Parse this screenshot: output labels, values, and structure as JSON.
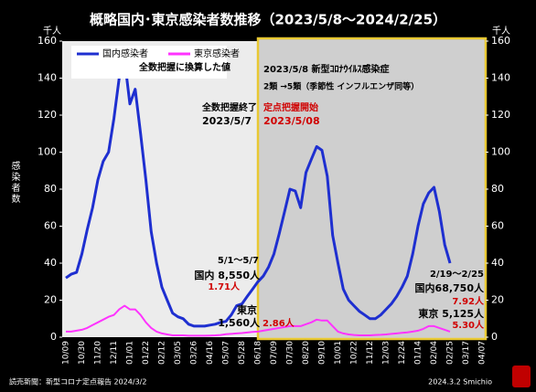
{
  "chart_data": {
    "type": "line",
    "title": "概略国内･東京感染者数推移（2023/5/8～2024/2/25）",
    "y_unit": "千人",
    "y2_unit": "千人",
    "ylabel": "感染者数",
    "categories": [
      "10/09",
      null,
      null,
      "10/30",
      null,
      null,
      "11/20",
      null,
      null,
      "12/11",
      null,
      null,
      "01/01",
      null,
      null,
      "01/22",
      null,
      null,
      "02/12",
      null,
      null,
      "03/05",
      null,
      null,
      "03/26",
      null,
      null,
      "04/16",
      null,
      null,
      "05/07",
      null,
      null,
      "05/28",
      null,
      null,
      "06/18",
      null,
      null,
      "07/09",
      null,
      null,
      "07/30",
      null,
      null,
      "08/20",
      null,
      null,
      "09/10",
      null,
      null,
      "10/01",
      null,
      null,
      "10/22",
      null,
      null,
      "11/12",
      null,
      null,
      "12/03",
      null,
      null,
      "12/24",
      null,
      null,
      "01/14",
      null,
      null,
      "02/04",
      null,
      null,
      "02/25",
      null,
      null,
      "03/17",
      null,
      null,
      "04/07"
    ],
    "series": [
      {
        "name": "国内感染者",
        "color": "#1e2fd0",
        "values": [
          32,
          34,
          35,
          45,
          58,
          70,
          85,
          95,
          100,
          118,
          140,
          150,
          126,
          134,
          110,
          85,
          57,
          40,
          27,
          20,
          13,
          11,
          10,
          7,
          6,
          6,
          6,
          6.5,
          7,
          8,
          8.55,
          12,
          17,
          18,
          22,
          26,
          30,
          33,
          38,
          45,
          56,
          68,
          80,
          79,
          70,
          89,
          96,
          103,
          101,
          87,
          55,
          40,
          26,
          20,
          17,
          14,
          12,
          10,
          10,
          12,
          15,
          18,
          22,
          27,
          33,
          45,
          60,
          72,
          78,
          81,
          68,
          50,
          40,
          null,
          null,
          null,
          null,
          null,
          null
        ]
      },
      {
        "name": "東京感染者",
        "color": "#ff33ff",
        "values": [
          3,
          3,
          3.5,
          4,
          5,
          6.5,
          8,
          9.5,
          11,
          12,
          15,
          17,
          15,
          15,
          12,
          8,
          5,
          3,
          2,
          1.5,
          1,
          1,
          1,
          0.8,
          0.8,
          0.8,
          0.8,
          0.9,
          1,
          1.2,
          1.56,
          1.8,
          2,
          2.2,
          2.5,
          2.8,
          3,
          3.5,
          4,
          4.5,
          5,
          5.5,
          6,
          6,
          6,
          7,
          8,
          9.5,
          9,
          9,
          6,
          3,
          2,
          1.5,
          1.2,
          1,
          1,
          1,
          1.2,
          1.3,
          1.5,
          1.8,
          2,
          2.3,
          2.6,
          3,
          3.5,
          4.5,
          6,
          6,
          5,
          4,
          3,
          null,
          null,
          null,
          null,
          null,
          null
        ]
      }
    ],
    "ylim": [
      0,
      160
    ],
    "yticks": [
      0,
      20,
      40,
      60,
      80,
      100,
      120,
      140,
      160
    ],
    "y2lim": [
      0,
      160
    ],
    "y2ticks": [
      0,
      20,
      40,
      60,
      80,
      100,
      120,
      140,
      160
    ],
    "annotations": [
      {
        "text": "全数把握に換算した値",
        "color": "#000000"
      },
      {
        "text": "2023/5/8 新型ｺﾛﾅｳｲﾙｽ感染症",
        "color": "#000000"
      },
      {
        "text": "2類 →5類（季節性 インフルエンザ同等）",
        "color": "#000000"
      },
      {
        "text": "全数把握終了",
        "color": "#000000"
      },
      {
        "text": "2023/5/7",
        "color": "#000000"
      },
      {
        "text": "定点把握開始",
        "color": "#d00000"
      },
      {
        "text": "2023/5/08",
        "color": "#d00000"
      },
      {
        "text": "5/1～5/7",
        "color": "#000000"
      },
      {
        "text": "国内 8,550人",
        "color": "#000000"
      },
      {
        "text": "1.71人",
        "color": "#d00000"
      },
      {
        "text": "東京",
        "color": "#000000"
      },
      {
        "text": "1,560人",
        "color": "#000000"
      },
      {
        "text": "2.86人",
        "color": "#d00000"
      },
      {
        "text": "2/19～2/25",
        "color": "#000000"
      },
      {
        "text": "国内68,750人",
        "color": "#000000"
      },
      {
        "text": "7.92人",
        "color": "#d00000"
      },
      {
        "text": "東京 5,125人",
        "color": "#000000"
      },
      {
        "text": "5.30人",
        "color": "#d00000"
      }
    ],
    "source": "読売新聞：新型コロナ定点報告 2024/3/2",
    "credit": "2024.3.2 Smichio"
  }
}
